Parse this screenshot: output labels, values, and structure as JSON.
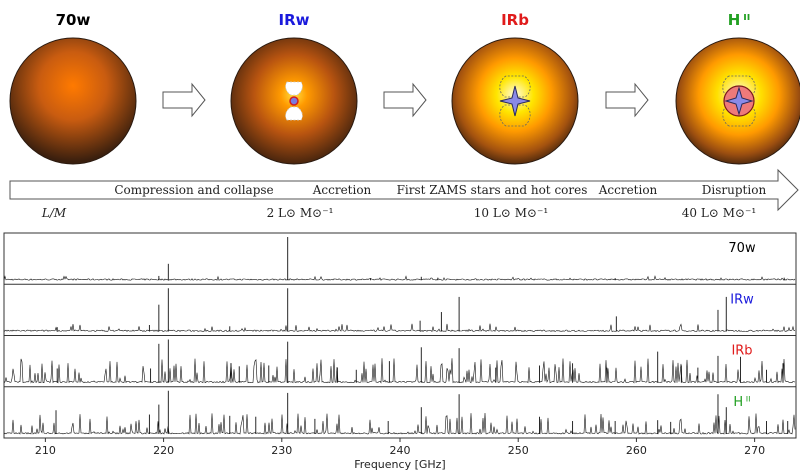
{
  "stages": [
    {
      "key": "70w",
      "label": "70w",
      "color": "#000000"
    },
    {
      "key": "IRw",
      "label": "IRw",
      "color": "#1a1adc"
    },
    {
      "key": "IRb",
      "label": "IRb",
      "color": "#e01b1b"
    },
    {
      "key": "HII",
      "label": "H ᴵᴵ",
      "color": "#22a022"
    }
  ],
  "timeline": {
    "phases": [
      "Compression and collapse",
      "Accretion",
      "First ZAMS stars and hot cores",
      "Accretion",
      "Disruption"
    ],
    "ratio_label": "L/M",
    "luminosity_ratios": [
      "2 L⊙ M⊙⁻¹",
      "10 L⊙ M⊙⁻¹",
      "40 L⊙ M⊙⁻¹"
    ]
  },
  "chart_data": {
    "type": "line",
    "xlabel": "Frequency [GHz]",
    "xlim": [
      206.5,
      273.5
    ],
    "xticks": [
      210,
      220,
      230,
      240,
      250,
      260,
      270
    ],
    "panels": [
      {
        "name": "70w",
        "color": "#000000",
        "lines": [
          [
            230.5,
            1.0
          ],
          [
            220.4,
            0.38
          ],
          [
            219.6,
            0.1
          ],
          [
            241.8,
            0.08
          ],
          [
            243.2,
            0.06
          ],
          [
            258.2,
            0.05
          ],
          [
            272.5,
            0.06
          ],
          [
            237.5,
            0.05
          ]
        ]
      },
      {
        "name": "IRw",
        "color": "#1a1adc",
        "lines": [
          [
            220.4,
            1.0
          ],
          [
            230.5,
            1.0
          ],
          [
            267.6,
            0.8
          ],
          [
            219.6,
            0.62
          ],
          [
            245.0,
            0.8
          ],
          [
            266.9,
            0.5
          ],
          [
            243.5,
            0.45
          ],
          [
            258.3,
            0.35
          ],
          [
            241.7,
            0.25
          ],
          [
            211.0,
            0.1
          ],
          [
            218.8,
            0.15
          ],
          [
            225.6,
            0.12
          ]
        ]
      },
      {
        "name": "IRb",
        "color": "#e01b1b",
        "lines": [
          [
            220.4,
            1.0
          ],
          [
            219.6,
            0.9
          ],
          [
            230.5,
            0.95
          ],
          [
            241.8,
            0.82
          ],
          [
            245.0,
            0.8
          ],
          [
            266.9,
            0.62
          ],
          [
            261.8,
            0.72
          ],
          [
            268.8,
            0.6
          ],
          [
            239.1,
            0.5
          ],
          [
            211.0,
            0.33
          ],
          [
            218.9,
            0.33
          ],
          [
            225.7,
            0.45
          ],
          [
            228.9,
            0.4
          ],
          [
            226.4,
            0.38
          ],
          [
            234.7,
            0.35
          ],
          [
            236.3,
            0.3
          ],
          [
            248.1,
            0.35
          ],
          [
            251.8,
            0.4
          ],
          [
            254.6,
            0.45
          ],
          [
            257.5,
            0.35
          ],
          [
            263.8,
            0.4
          ],
          [
            265.2,
            0.35
          ],
          [
            271.0,
            0.3
          ],
          [
            272.4,
            0.45
          ]
        ]
      },
      {
        "name": "HII",
        "color": "#22a022",
        "lines": [
          [
            220.4,
            1.0
          ],
          [
            219.6,
            0.68
          ],
          [
            230.5,
            0.95
          ],
          [
            245.0,
            0.92
          ],
          [
            266.9,
            0.92
          ],
          [
            241.8,
            0.62
          ],
          [
            267.6,
            0.62
          ],
          [
            251.8,
            0.4
          ],
          [
            210.9,
            0.55
          ],
          [
            218.8,
            0.45
          ],
          [
            225.6,
            0.42
          ],
          [
            227.8,
            0.4
          ],
          [
            232.8,
            0.35
          ],
          [
            239.0,
            0.3
          ],
          [
            254.6,
            0.3
          ],
          [
            258.2,
            0.3
          ],
          [
            261.8,
            0.32
          ],
          [
            262.9,
            0.28
          ],
          [
            271.0,
            0.3
          ],
          [
            272.8,
            0.3
          ]
        ]
      }
    ]
  }
}
